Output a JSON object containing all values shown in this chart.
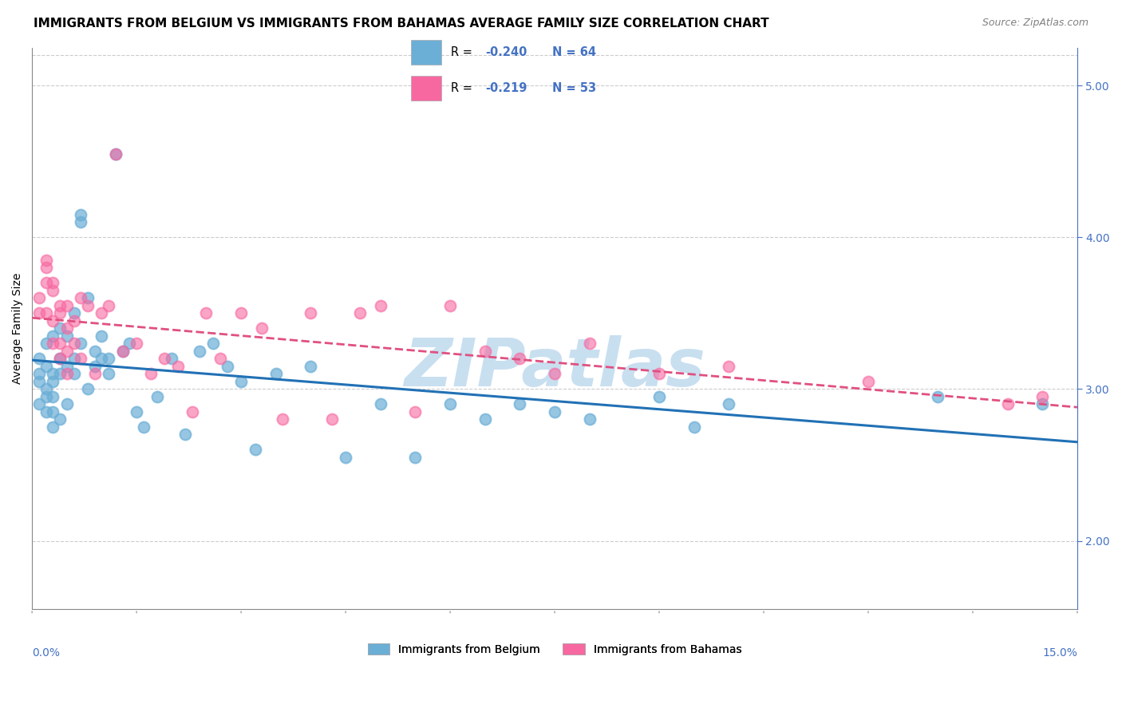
{
  "title": "IMMIGRANTS FROM BELGIUM VS IMMIGRANTS FROM BAHAMAS AVERAGE FAMILY SIZE CORRELATION CHART",
  "source": "Source: ZipAtlas.com",
  "ylabel": "Average Family Size",
  "yticks_right": [
    2.0,
    3.0,
    4.0,
    5.0
  ],
  "xmin": 0.0,
  "xmax": 0.15,
  "ymin": 1.55,
  "ymax": 5.25,
  "color_blue": "#6baed6",
  "color_blue_line": "#2171b5",
  "color_pink": "#f768a1",
  "color_pink_line": "#e05080",
  "color_watermark": "#c8dff0",
  "color_axis": "#4472c4",
  "grid_color": "#cccccc",
  "bg_color": "#ffffff",
  "title_fontsize": 11,
  "source_fontsize": 9,
  "axis_label_fontsize": 10,
  "tick_fontsize": 10,
  "blue_x": [
    0.001,
    0.001,
    0.001,
    0.001,
    0.002,
    0.002,
    0.002,
    0.002,
    0.002,
    0.003,
    0.003,
    0.003,
    0.003,
    0.003,
    0.003,
    0.004,
    0.004,
    0.004,
    0.004,
    0.005,
    0.005,
    0.005,
    0.006,
    0.006,
    0.006,
    0.007,
    0.007,
    0.007,
    0.008,
    0.008,
    0.009,
    0.009,
    0.01,
    0.01,
    0.011,
    0.011,
    0.012,
    0.013,
    0.014,
    0.015,
    0.016,
    0.018,
    0.02,
    0.022,
    0.024,
    0.026,
    0.028,
    0.03,
    0.032,
    0.035,
    0.04,
    0.045,
    0.05,
    0.055,
    0.06,
    0.065,
    0.07,
    0.075,
    0.08,
    0.09,
    0.095,
    0.1,
    0.13,
    0.145
  ],
  "blue_y": [
    3.2,
    3.1,
    3.05,
    2.9,
    3.3,
    3.15,
    3.0,
    2.95,
    2.85,
    3.35,
    3.1,
    3.05,
    2.95,
    2.85,
    2.75,
    3.4,
    3.2,
    3.1,
    2.8,
    3.35,
    3.15,
    2.9,
    3.5,
    3.2,
    3.1,
    4.15,
    4.1,
    3.3,
    3.6,
    3.0,
    3.25,
    3.15,
    3.35,
    3.2,
    3.2,
    3.1,
    4.55,
    3.25,
    3.3,
    2.85,
    2.75,
    2.95,
    3.2,
    2.7,
    3.25,
    3.3,
    3.15,
    3.05,
    2.6,
    3.1,
    3.15,
    2.55,
    2.9,
    2.55,
    2.9,
    2.8,
    2.9,
    2.85,
    2.8,
    2.95,
    2.75,
    2.9,
    2.95,
    2.9
  ],
  "pink_x": [
    0.001,
    0.001,
    0.002,
    0.002,
    0.002,
    0.002,
    0.003,
    0.003,
    0.003,
    0.003,
    0.004,
    0.004,
    0.004,
    0.004,
    0.005,
    0.005,
    0.005,
    0.005,
    0.006,
    0.006,
    0.007,
    0.007,
    0.008,
    0.009,
    0.01,
    0.011,
    0.012,
    0.013,
    0.015,
    0.017,
    0.019,
    0.021,
    0.023,
    0.025,
    0.027,
    0.03,
    0.033,
    0.036,
    0.04,
    0.043,
    0.047,
    0.05,
    0.055,
    0.06,
    0.065,
    0.07,
    0.075,
    0.08,
    0.09,
    0.1,
    0.12,
    0.14,
    0.145
  ],
  "pink_y": [
    3.6,
    3.5,
    3.85,
    3.8,
    3.7,
    3.5,
    3.7,
    3.65,
    3.45,
    3.3,
    3.55,
    3.5,
    3.3,
    3.2,
    3.55,
    3.4,
    3.25,
    3.1,
    3.45,
    3.3,
    3.6,
    3.2,
    3.55,
    3.1,
    3.5,
    3.55,
    4.55,
    3.25,
    3.3,
    3.1,
    3.2,
    3.15,
    2.85,
    3.5,
    3.2,
    3.5,
    3.4,
    2.8,
    3.5,
    2.8,
    3.5,
    3.55,
    2.85,
    3.55,
    3.25,
    3.2,
    3.1,
    3.3,
    3.1,
    3.15,
    3.05,
    2.9,
    2.95
  ]
}
